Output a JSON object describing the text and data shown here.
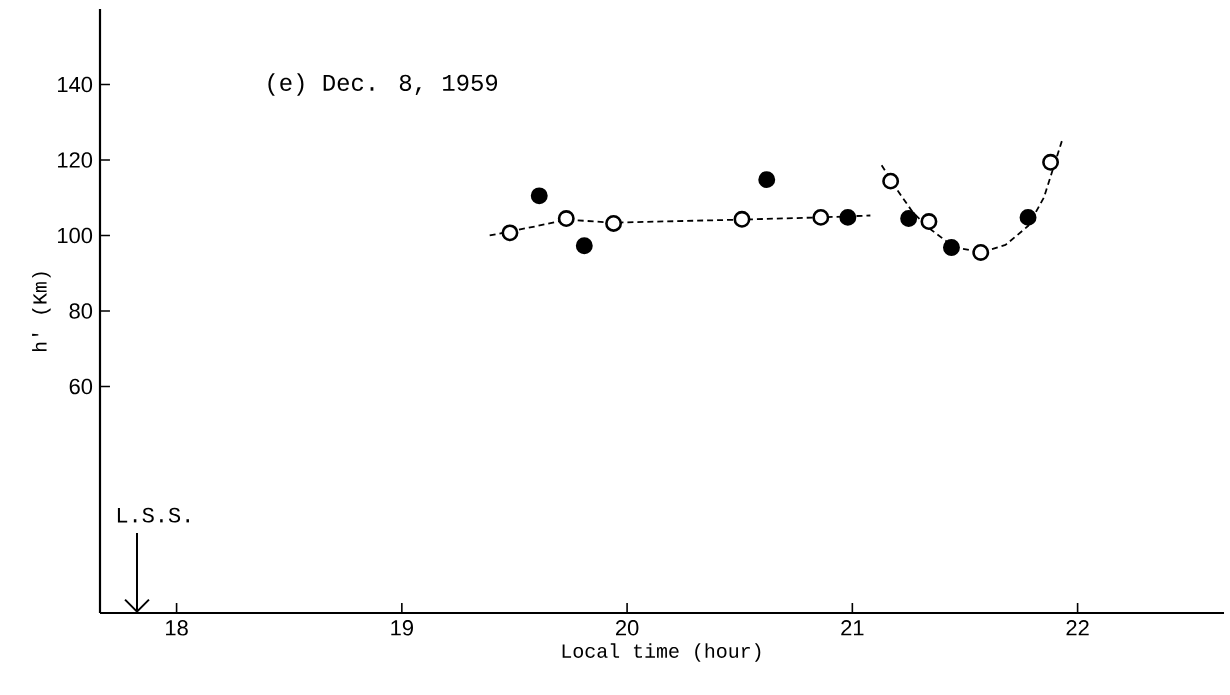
{
  "chart_data": {
    "type": "scatter",
    "title": "(e) Dec. 8, 1959",
    "xlabel": "Local time (hour)",
    "ylabel": "h' (Km)",
    "xlim": [
      17.66,
      22.65
    ],
    "ylim": [
      0,
      160
    ],
    "xticks": [
      18,
      19,
      20,
      21,
      22
    ],
    "yticks": [
      60,
      80,
      100,
      120,
      140
    ],
    "grid": false,
    "annotations": [
      "L.S.S."
    ],
    "series": [
      {
        "color": "#ffffff",
        "marker": "circle",
        "x": [
          19.48,
          19.73,
          19.94,
          20.51,
          20.86,
          21.17,
          21.34,
          21.57,
          21.88
        ],
        "values": [
          100.7,
          104.5,
          103.2,
          104.3,
          104.8,
          114.4,
          103.7,
          95.5,
          119.4
        ]
      },
      {
        "color": "#000000",
        "marker": "circle",
        "x": [
          19.61,
          19.81,
          20.62,
          20.98,
          21.25,
          21.44,
          21.78
        ],
        "values": [
          110.5,
          97.3,
          114.8,
          104.8,
          104.5,
          96.8,
          104.8
        ]
      },
      {
        "type": "line",
        "color": "#000000",
        "line_style": "dashed",
        "marker": "none",
        "x": [
          19.39,
          19.6,
          19.73,
          19.94,
          20.5,
          20.86,
          21.08
        ],
        "values": [
          100,
          102.5,
          104.2,
          103.4,
          104.2,
          104.8,
          105.3
        ]
      },
      {
        "type": "line",
        "color": "#000000",
        "line_style": "dashed",
        "marker": "none",
        "x": [
          21.13,
          21.2,
          21.27,
          21.35,
          21.45,
          21.57,
          21.68,
          21.78,
          21.85,
          21.93
        ],
        "values": [
          118.6,
          112,
          106,
          101.5,
          97,
          95.5,
          97.5,
          102.5,
          110,
          125
        ]
      }
    ]
  }
}
